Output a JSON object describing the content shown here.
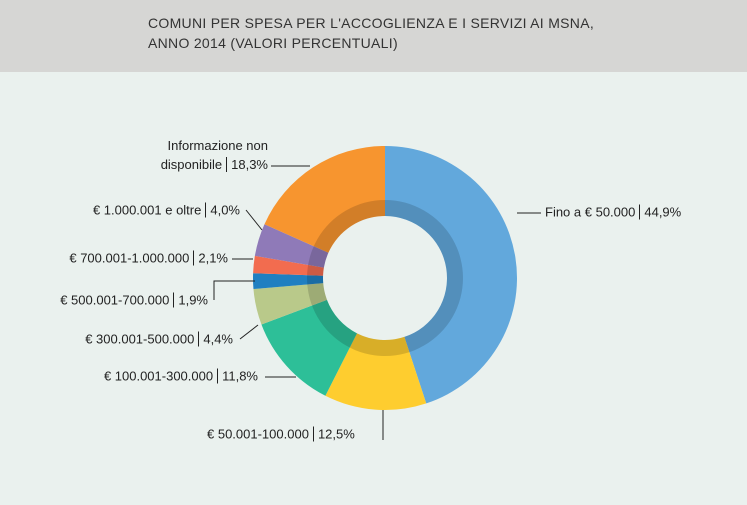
{
  "chart_data": {
    "type": "donut",
    "title": "COMUNI PER SPESA PER L'ACCOGLIENZA E I SERVIZI AI MSNA, ANNO 2014 (VALORI PERCENTUALI)",
    "categories": [
      "Fino a € 50.000",
      "€ 50.001-100.000",
      "€ 100.001-300.000",
      "€ 300.001-500.000",
      "€ 500.001-700.000",
      "€ 700.001-1.000.000",
      "€ 1.000.001 e oltre",
      "Informazione non disponibile"
    ],
    "values": [
      44.9,
      12.5,
      11.8,
      4.4,
      1.9,
      2.1,
      4.0,
      18.3
    ],
    "value_labels": [
      "44,9%",
      "12,5%",
      "11,8%",
      "4,4%",
      "1,9%",
      "2,1%",
      "4,0%",
      "18,3%"
    ],
    "colors": [
      "#62a8dc",
      "#fecd2f",
      "#2dbf98",
      "#b9c98a",
      "#1f7fc1",
      "#f26c4f",
      "#8f7ab8",
      "#f7952f"
    ]
  }
}
